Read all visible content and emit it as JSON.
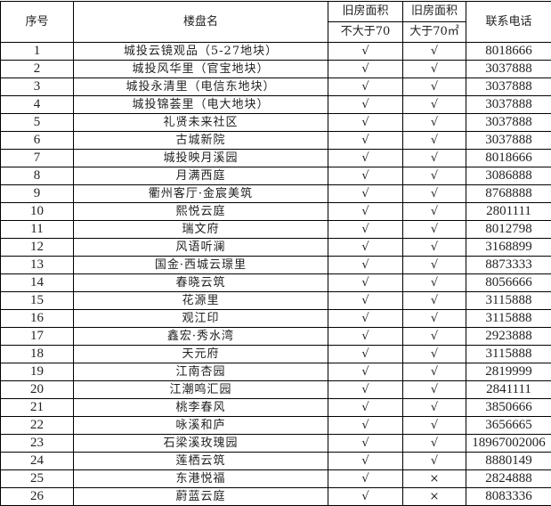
{
  "headers": {
    "index": "序号",
    "name": "楼盘名",
    "area_le70_top": "旧房面积",
    "area_le70_bottom": "不大于70",
    "area_gt70_top": "旧房面积",
    "area_gt70_bottom": "大于70㎡",
    "phone": "联系电话"
  },
  "rows": [
    {
      "no": "1",
      "name": "城投云镜观品（5-27地块）",
      "le70": "√",
      "gt70": "√",
      "phone": "8018666"
    },
    {
      "no": "2",
      "name": "城投风华里（官宝地块）",
      "le70": "√",
      "gt70": "√",
      "phone": "3037888"
    },
    {
      "no": "3",
      "name": "城投永清里（电信东地块）",
      "le70": "√",
      "gt70": "√",
      "phone": "3037888"
    },
    {
      "no": "4",
      "name": "城投锦荟里（电大地块）",
      "le70": "√",
      "gt70": "√",
      "phone": "3037888"
    },
    {
      "no": "5",
      "name": "礼贤未来社区",
      "le70": "√",
      "gt70": "√",
      "phone": "3037888"
    },
    {
      "no": "6",
      "name": "古城新院",
      "le70": "√",
      "gt70": "√",
      "phone": "3037888"
    },
    {
      "no": "7",
      "name": "城投映月溪园",
      "le70": "√",
      "gt70": "√",
      "phone": "8018666"
    },
    {
      "no": "8",
      "name": "月满西庭",
      "le70": "√",
      "gt70": "√",
      "phone": "3086888"
    },
    {
      "no": "9",
      "name": "衢州客厅·金宸美筑",
      "le70": "√",
      "gt70": "√",
      "phone": "8768888"
    },
    {
      "no": "10",
      "name": "熙悦云庭",
      "le70": "√",
      "gt70": "√",
      "phone": "2801111"
    },
    {
      "no": "11",
      "name": "瑞文府",
      "le70": "√",
      "gt70": "√",
      "phone": "8012798"
    },
    {
      "no": "12",
      "name": "风语听澜",
      "le70": "√",
      "gt70": "√",
      "phone": "3168899"
    },
    {
      "no": "13",
      "name": "国金·西城云璟里",
      "le70": "√",
      "gt70": "√",
      "phone": "8873333"
    },
    {
      "no": "14",
      "name": "春晓云筑",
      "le70": "√",
      "gt70": "√",
      "phone": "8056666"
    },
    {
      "no": "15",
      "name": "花源里",
      "le70": "√",
      "gt70": "√",
      "phone": "3115888"
    },
    {
      "no": "16",
      "name": "观江印",
      "le70": "√",
      "gt70": "√",
      "phone": "3115888"
    },
    {
      "no": "17",
      "name": "鑫宏·秀水湾",
      "le70": "√",
      "gt70": "√",
      "phone": "2923888"
    },
    {
      "no": "18",
      "name": "天元府",
      "le70": "√",
      "gt70": "√",
      "phone": "3115888"
    },
    {
      "no": "19",
      "name": "江南杏园",
      "le70": "√",
      "gt70": "√",
      "phone": "2819999"
    },
    {
      "no": "20",
      "name": "江潮鸣汇园",
      "le70": "√",
      "gt70": "√",
      "phone": "2841111"
    },
    {
      "no": "21",
      "name": "桃李春风",
      "le70": "√",
      "gt70": "√",
      "phone": "3850666"
    },
    {
      "no": "22",
      "name": "咏溪和庐",
      "le70": "√",
      "gt70": "√",
      "phone": "3656665"
    },
    {
      "no": "23",
      "name": "石梁溪玫瑰园",
      "le70": "√",
      "gt70": "√",
      "phone": "18967002006"
    },
    {
      "no": "24",
      "name": "莲栖云筑",
      "le70": "√",
      "gt70": "√",
      "phone": "8880149"
    },
    {
      "no": "25",
      "name": "东港悦福",
      "le70": "√",
      "gt70": "×",
      "phone": "2824888"
    },
    {
      "no": "26",
      "name": "蔚蓝云庭",
      "le70": "√",
      "gt70": "×",
      "phone": "8083336"
    }
  ]
}
